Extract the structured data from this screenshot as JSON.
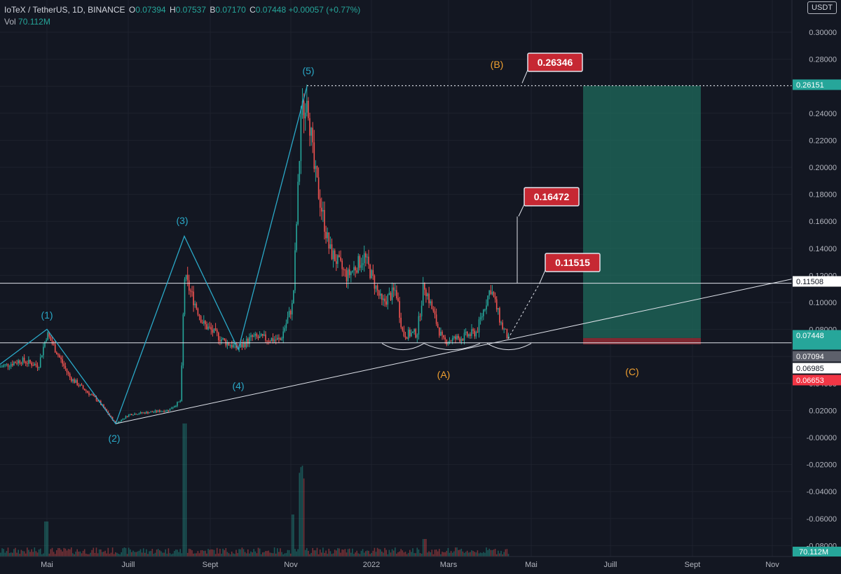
{
  "header": {
    "symbol": "IoTeX / TetherUS, 1D, BINANCE",
    "o_label": "O",
    "o_value": "0.07394",
    "h_label": "H",
    "h_value": "0.07537",
    "l_label": "B",
    "l_value": "0.07170",
    "c_label": "C",
    "c_value": "0.07448",
    "change": "+0.00057 (+0.77%)",
    "vol_label": "Vol",
    "vol_value": "70.112M",
    "currency": "USDT"
  },
  "colors": {
    "background": "#131722",
    "up": "#26a69a",
    "down": "#ef5350",
    "wave": "#2aa9c8",
    "abc": "#f0a030",
    "callout": "#c62833",
    "target_zone": "#1f6b5c",
    "stop_zone": "#8c2a33",
    "line": "#e0e3eb"
  },
  "chart_data": {
    "type": "candlestick",
    "x_ticks": [
      "Mai",
      "Juill",
      "Sept",
      "Nov",
      "2022",
      "Mars",
      "Mai",
      "Juill",
      "Sept",
      "Nov"
    ],
    "y_ticks": [
      "0.30000",
      "0.28000",
      "0.26000",
      "0.24000",
      "0.22000",
      "0.20000",
      "0.18000",
      "0.16000",
      "0.14000",
      "0.12000",
      "0.10000",
      "0.08000",
      "0.06000",
      "0.04000",
      "0.02000",
      "-0.00000",
      "-0.02000",
      "-0.04000",
      "-0.06000",
      "-0.08000"
    ],
    "ylim": [
      -0.08,
      0.3
    ],
    "price_tags": [
      {
        "value": 0.26151,
        "text": "0.26151",
        "style": "green"
      },
      {
        "value": 0.11508,
        "text": "0.11508",
        "style": "white"
      },
      {
        "value": 0.07448,
        "text": "0.07448",
        "style": "green"
      },
      {
        "value": 0.07094,
        "text": "0.07094",
        "style": "grey"
      },
      {
        "value": 0.06985,
        "text": "0.06985",
        "style": "white"
      },
      {
        "value": 0.06653,
        "text": "0.06653",
        "style": "red"
      }
    ],
    "countdown": "03:43:55",
    "volume_tag": "70.112M",
    "callouts": [
      {
        "text": "0.26346",
        "value": 0.26346
      },
      {
        "text": "0.16472",
        "value": 0.16472
      },
      {
        "text": "0.11515",
        "value": 0.11515
      }
    ],
    "wave_labels": [
      "(1)",
      "(2)",
      "(3)",
      "(4)",
      "(5)"
    ],
    "abc_labels": [
      "(A)",
      "(B)",
      "(C)"
    ],
    "horizontal_levels": [
      0.11508,
      0.07094
    ],
    "dotted_level": 0.26151
  }
}
